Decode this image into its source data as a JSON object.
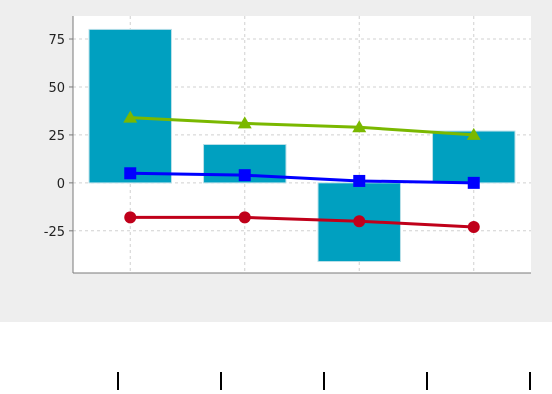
{
  "chart_data": {
    "type": "bar",
    "categories": [
      "",
      "",
      "",
      ""
    ],
    "title": "",
    "xlabel": "",
    "ylabel": "",
    "ylim": [
      -47,
      87
    ],
    "yticks": [
      75,
      50,
      25,
      0,
      -25
    ],
    "grid": true,
    "bars": {
      "values": [
        80,
        20,
        -41,
        27
      ],
      "color": "#00a0c0"
    },
    "series": [
      {
        "values": [
          34,
          31,
          29,
          25
        ],
        "color": "#7ab800",
        "marker": "triangle"
      },
      {
        "values": [
          5,
          4,
          1,
          0
        ],
        "color": "#0000ff",
        "marker": "square"
      },
      {
        "values": [
          -18,
          -18,
          -20,
          -23
        ],
        "color": "#c0001a",
        "marker": "circle"
      }
    ]
  },
  "colors": {
    "panel_background": "#eeeeee",
    "plot_background": "#ffffff",
    "grid": "#d0d0d0",
    "axis": "#7a7a7a"
  }
}
